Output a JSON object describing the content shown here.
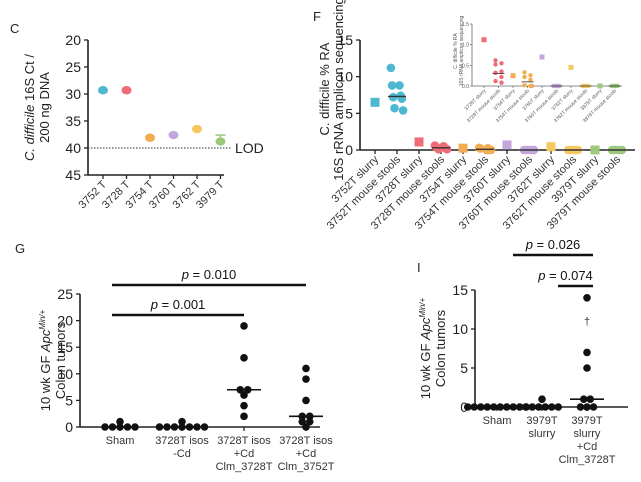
{
  "chart_data": [
    {
      "panel": "C",
      "type": "scatter",
      "ylabel": "C. difficile 16S Ct / 200 ng DNA",
      "ylabel_lines": [
        "C. difficile 16S Ct /",
        "200 ng DNA"
      ],
      "ylim": [
        45,
        20
      ],
      "y_inverted": true,
      "yticks": [
        20,
        25,
        30,
        35,
        40,
        45
      ],
      "categories": [
        "3752 T",
        "3728 T",
        "3754 T",
        "3760 T",
        "3762 T",
        "3979 T"
      ],
      "values": [
        29.3,
        29.3,
        38.1,
        37.6,
        36.5,
        38.8
      ],
      "errors": [
        null,
        null,
        null,
        null,
        null,
        1.2
      ],
      "colors": [
        "#4fb8d1",
        "#ef6b78",
        "#f2ac52",
        "#c4a6dc",
        "#f5c862",
        "#9dc97c"
      ],
      "reference_line": {
        "value": 40,
        "label": "LOD",
        "style": "dotted"
      }
    },
    {
      "panel": "F",
      "type": "scatter",
      "ylabel": "C. difficile % RA 16S rRNA amplicon sequencing",
      "ylabel_lines": [
        "C. difficile % RA",
        "16S rRNA amplicon sequencing"
      ],
      "ylim": [
        0,
        15
      ],
      "yticks": [
        0,
        5,
        10,
        15
      ],
      "categories": [
        "3752T slurry",
        "3752T mouse stools",
        "3728T slurry",
        "3728T mouse stools",
        "3754T slurry",
        "3754T mouse stools",
        "3760T slurry",
        "3760T mouse stools",
        "3762T slurry",
        "3762T mouse stools",
        "3979T slurry",
        "3979T mouse stools"
      ],
      "marker_shapes": [
        "square",
        "circle",
        "square",
        "circle",
        "square",
        "circle",
        "square",
        "circle",
        "square",
        "circle",
        "square",
        "circle"
      ],
      "colors": [
        "#4fb8d1",
        "#4fb8d1",
        "#ef6b78",
        "#ef6b78",
        "#f2ac52",
        "#f2ac52",
        "#c4a6dc",
        "#c4a6dc",
        "#f5c862",
        "#f5c862",
        "#9dc97c",
        "#9dc97c"
      ],
      "points": [
        [
          6.5
        ],
        [
          11.2,
          8.8,
          8.8,
          7.4,
          7.2,
          7.0,
          5.7,
          5.4
        ],
        [
          1.1
        ],
        [
          0.6,
          0.5,
          0.4,
          0.3,
          0.3,
          0.2,
          0.1,
          0.1
        ],
        [
          0.25
        ],
        [
          0.3,
          0.25,
          0.2,
          0.1,
          0.0,
          0.0,
          0.0
        ],
        [
          0.7
        ],
        [
          0.0,
          0.0,
          0.0,
          0.0,
          0.0,
          0.0
        ],
        [
          0.45
        ],
        [
          0.0,
          0.0,
          0.0,
          0.0,
          0.0,
          0.0
        ],
        [
          0.0
        ],
        [
          0.0,
          0.0,
          0.0,
          0.0,
          0.0,
          0.0
        ]
      ],
      "medians": [
        null,
        7.3,
        null,
        0.3,
        null,
        0.1,
        null,
        0.0,
        null,
        0.0,
        null,
        0.0
      ]
    },
    {
      "panel": "F-inset",
      "type": "scatter",
      "ylabel": "C. difficile % RA 16S rRNA amplicon sequencing",
      "ylim": [
        0,
        1.5
      ],
      "yticks": [
        0.0,
        0.5,
        1.0,
        1.5
      ],
      "ytick_labels": [
        "0.0",
        "0.5",
        "1.0",
        "1.5"
      ],
      "categories": [
        "3728T slurry",
        "3728T mouse stools",
        "3754T slurry",
        "3754T mouse stools",
        "3760T slurry",
        "3760T mouse stools",
        "3762T slurry",
        "3762T mouse stools",
        "3979T slurry",
        "3979T mouse stools"
      ],
      "marker_shapes": [
        "square",
        "circle",
        "square",
        "circle",
        "square",
        "circle",
        "square",
        "circle",
        "square",
        "circle"
      ],
      "colors": [
        "#ef6b78",
        "#ef6b78",
        "#f2ac52",
        "#f2ac52",
        "#c4a6dc",
        "#c4a6dc",
        "#f5c862",
        "#f5c862",
        "#9dc97c",
        "#9dc97c"
      ],
      "points": [
        [
          1.12
        ],
        [
          0.62,
          0.55,
          0.52,
          0.35,
          0.32,
          0.22,
          0.12,
          0.08
        ],
        [
          0.25
        ],
        [
          0.33,
          0.26,
          0.22,
          0.15,
          0.02,
          0.0,
          0.0
        ],
        [
          0.7
        ],
        [
          0.0,
          0.0,
          0.0,
          0.0,
          0.0
        ],
        [
          0.45
        ],
        [
          0.0,
          0.0,
          0.0,
          0.0,
          0.0
        ],
        [
          0.0
        ],
        [
          0.0,
          0.0,
          0.0,
          0.0,
          0.0
        ]
      ],
      "medians": [
        null,
        0.3,
        null,
        0.1,
        null,
        0.0,
        null,
        0.0,
        null,
        0.0
      ]
    },
    {
      "panel": "G",
      "type": "scatter",
      "ylabel": "10 wk GF ApcMin/+ Colon tumors",
      "ylabel_lines": [
        "10 wk GF Apc",
        "Min/+",
        "Colon tumors"
      ],
      "ylim": [
        0,
        25
      ],
      "yticks": [
        0,
        5,
        10,
        15,
        20,
        25
      ],
      "categories": [
        "Sham",
        "3728T isos -Cd",
        "3728T isos +Cd Clm_3728T",
        "3728T isos +Cd Clm_3752T"
      ],
      "category_lines": [
        [
          "Sham"
        ],
        [
          "3728T isos",
          "-Cd"
        ],
        [
          "3728T isos",
          "+Cd",
          "Clm_3728T"
        ],
        [
          "3728T isos",
          "+Cd",
          "Clm_3752T"
        ]
      ],
      "points": [
        [
          0,
          1,
          0,
          0,
          0,
          0
        ],
        [
          0,
          1,
          0,
          0,
          0,
          0,
          0,
          0
        ],
        [
          19,
          13,
          7,
          7,
          6,
          4,
          2
        ],
        [
          11,
          9,
          5,
          2,
          2,
          1,
          1,
          0
        ]
      ],
      "medians": [
        0,
        0,
        7,
        2
      ],
      "significance": [
        {
          "from": 0,
          "to": 2,
          "label": "p = 0.001"
        },
        {
          "from": 0,
          "to": 3,
          "label": "p = 0.010"
        }
      ]
    },
    {
      "panel": "I",
      "type": "scatter",
      "ylabel": "10 wk GF ApcMin/+ Colon tumors",
      "ylabel_lines": [
        "10 wk GF Apc",
        "Min/+",
        "Colon tumors"
      ],
      "ylim": [
        0,
        15
      ],
      "yticks": [
        0,
        5,
        10,
        15
      ],
      "categories": [
        "Sham",
        "3979T slurry",
        "3979T slurry +Cd Clm_3728T"
      ],
      "category_lines": [
        [
          "Sham"
        ],
        [
          "3979T",
          "slurry"
        ],
        [
          "3979T",
          "slurry",
          "+Cd",
          "Clm_3728T"
        ]
      ],
      "points": [
        [
          0,
          0,
          0,
          0,
          0,
          0,
          0,
          0,
          0,
          0
        ],
        [
          0,
          1,
          0,
          0,
          0,
          0,
          0
        ],
        [
          14,
          7,
          5,
          1,
          1,
          0,
          0,
          0
        ]
      ],
      "medians": [
        0,
        0,
        1
      ],
      "annotations": [
        {
          "category": 2,
          "y": 11,
          "text": "†"
        }
      ],
      "significance": [
        {
          "from": 1,
          "to": 2,
          "label": "p = 0.074"
        },
        {
          "from": 0,
          "to": 2,
          "label": "p = 0.026"
        }
      ]
    }
  ]
}
